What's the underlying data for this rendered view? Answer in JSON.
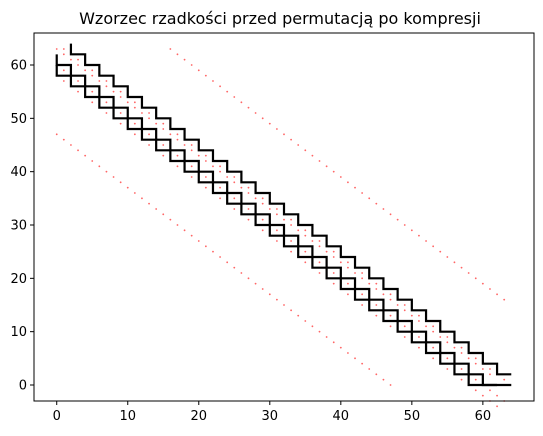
{
  "chart_data": {
    "type": "line",
    "title": "Wzorzec rzadkości przed permutacją po kompresji",
    "xlabel": "",
    "ylabel": "",
    "xlim": [
      -3.2,
      67.2
    ],
    "ylim": [
      -3.0,
      66.0
    ],
    "xticks": [
      0,
      10,
      20,
      30,
      40,
      50,
      60
    ],
    "yticks": [
      0,
      10,
      20,
      30,
      40,
      50,
      60
    ],
    "grid": false,
    "legend": "none",
    "scatter_series": [
      {
        "name": "main band lower-left edge",
        "color": "#ff6666",
        "x_start": 0,
        "x_end": 62,
        "y_at_start": 58,
        "slope": -1
      },
      {
        "name": "main band lower-right edge",
        "color": "#ff6666",
        "x_start": 1,
        "x_end": 63,
        "y_at_start": 59,
        "slope": -1
      },
      {
        "name": "main band upper-left edge",
        "color": "#ff6666",
        "x_start": 0,
        "x_end": 61,
        "y_at_start": 63,
        "slope": -1
      },
      {
        "name": "main band upper-right edge",
        "color": "#ff6666",
        "x_start": 1,
        "x_end": 63,
        "y_at_start": 63,
        "slope": -1
      },
      {
        "name": "upper off-diagonal",
        "color": "#ff6666",
        "x_start": 16,
        "x_end": 63,
        "y_at_start": 63,
        "slope": -1
      },
      {
        "name": "lower off-diagonal",
        "color": "#ff6666",
        "x_start": 0,
        "x_end": 47,
        "y_at_start": 47,
        "slope": -1
      }
    ],
    "staircases": [
      {
        "name": "upper staircase",
        "color": "#000000",
        "x_start": 2,
        "y_start": 64,
        "step": 2,
        "steps": 31,
        "end_x": 64
      },
      {
        "name": "middle staircase",
        "color": "#000000",
        "x_start": 0,
        "y_start": 62,
        "step": 2,
        "steps": 31,
        "end_x": 64
      },
      {
        "name": "lower staircase",
        "color": "#000000",
        "x_start": 0,
        "y_start": 60,
        "step": 2,
        "steps": 30,
        "end_x": 62
      }
    ]
  }
}
